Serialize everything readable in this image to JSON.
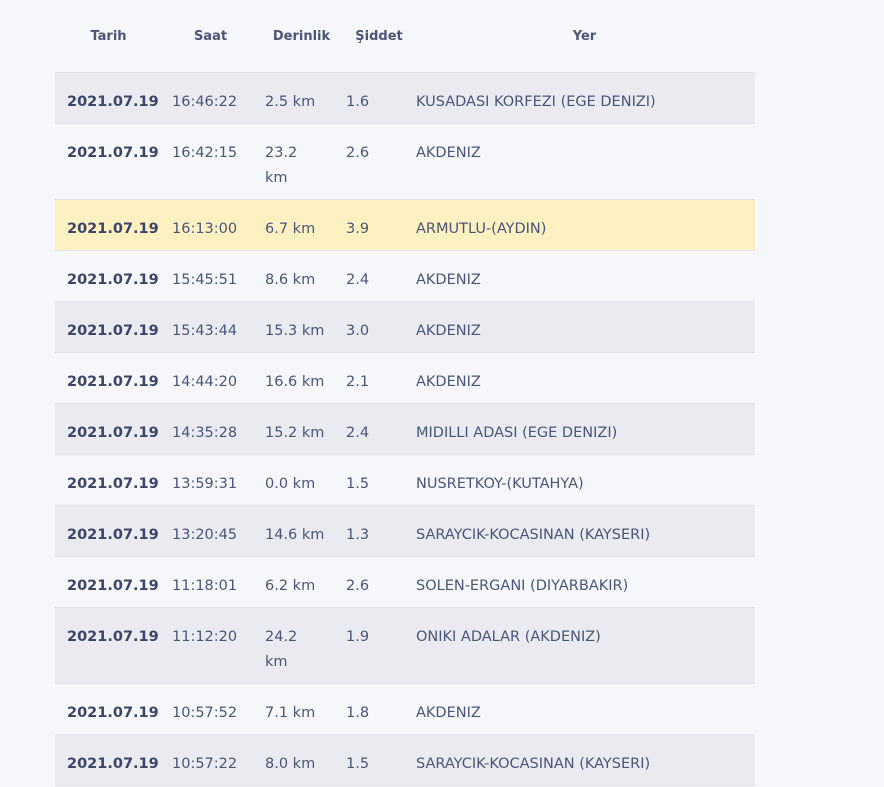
{
  "headers": {
    "date": "Tarih",
    "time": "Saat",
    "depth": "Derinlik",
    "magnitude": "Şiddet",
    "location": "Yer"
  },
  "colors": {
    "shaded_row": "#eaebf0",
    "plain_row": "#f6f7fb",
    "highlight_row": "#fdf1c2",
    "text": "#4a5578"
  },
  "rows": [
    {
      "date": "2021.07.19",
      "time": "16:46:22",
      "depth": "2.5 km",
      "magnitude": "1.6",
      "location": "KUSADASI KORFEZI (EGE DENIZI)"
    },
    {
      "date": "2021.07.19",
      "time": "16:42:15",
      "depth": "23.2 km",
      "magnitude": "2.6",
      "location": "AKDENIZ"
    },
    {
      "date": "2021.07.19",
      "time": "16:13:00",
      "depth": "6.7 km",
      "magnitude": "3.9",
      "location": "ARMUTLU-(AYDIN)"
    },
    {
      "date": "2021.07.19",
      "time": "15:45:51",
      "depth": "8.6 km",
      "magnitude": "2.4",
      "location": "AKDENIZ"
    },
    {
      "date": "2021.07.19",
      "time": "15:43:44",
      "depth": "15.3 km",
      "magnitude": "3.0",
      "location": "AKDENIZ"
    },
    {
      "date": "2021.07.19",
      "time": "14:44:20",
      "depth": "16.6 km",
      "magnitude": "2.1",
      "location": "AKDENIZ"
    },
    {
      "date": "2021.07.19",
      "time": "14:35:28",
      "depth": "15.2 km",
      "magnitude": "2.4",
      "location": "MIDILLI ADASI (EGE DENIZI)"
    },
    {
      "date": "2021.07.19",
      "time": "13:59:31",
      "depth": "0.0 km",
      "magnitude": "1.5",
      "location": "NUSRETKOY-(KUTAHYA)"
    },
    {
      "date": "2021.07.19",
      "time": "13:20:45",
      "depth": "14.6 km",
      "magnitude": "1.3",
      "location": "SARAYCIK-KOCASINAN (KAYSERI)"
    },
    {
      "date": "2021.07.19",
      "time": "11:18:01",
      "depth": "6.2 km",
      "magnitude": "2.6",
      "location": "SOLEN-ERGANI (DIYARBAKIR)"
    },
    {
      "date": "2021.07.19",
      "time": "11:12:20",
      "depth": "24.2 km",
      "magnitude": "1.9",
      "location": "ONIKI ADALAR (AKDENIZ)"
    },
    {
      "date": "2021.07.19",
      "time": "10:57:52",
      "depth": "7.1 km",
      "magnitude": "1.8",
      "location": "AKDENIZ"
    },
    {
      "date": "2021.07.19",
      "time": "10:57:22",
      "depth": "8.0 km",
      "magnitude": "1.5",
      "location": "SARAYCIK-KOCASINAN (KAYSERI)"
    }
  ]
}
